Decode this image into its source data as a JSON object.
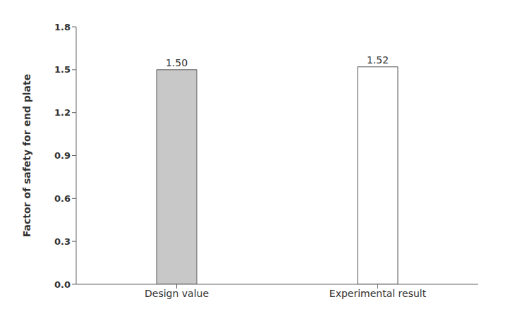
{
  "chart_data": {
    "type": "bar",
    "categories": [
      "Design value",
      "Experimental result"
    ],
    "values": [
      1.5,
      1.52
    ],
    "value_labels": [
      "1.50",
      "1.52"
    ],
    "data_labels": true,
    "colors": [
      "#c8c8c8",
      "#ffffff"
    ],
    "ylabel": "Factor of safety for end plate",
    "ylim": [
      0.0,
      1.8
    ],
    "yticks": [
      {
        "value": 0.0,
        "label": "0.0"
      },
      0.3,
      0.6,
      0.9,
      1.2,
      1.5,
      1.8
    ],
    "grid": false
  }
}
